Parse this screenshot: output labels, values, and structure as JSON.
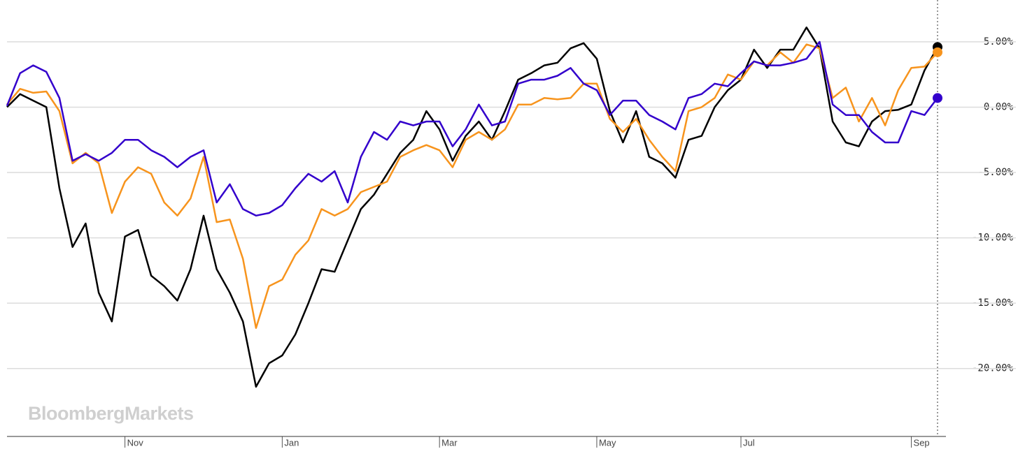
{
  "chart_data": {
    "type": "line",
    "watermark": "BloombergMarkets",
    "categories": [
      null,
      null,
      null,
      null,
      null,
      null,
      null,
      null,
      null,
      "Nov",
      null,
      null,
      null,
      null,
      null,
      null,
      null,
      null,
      null,
      null,
      null,
      "Jan",
      null,
      null,
      null,
      null,
      null,
      null,
      null,
      null,
      null,
      null,
      null,
      "Mar",
      null,
      null,
      null,
      null,
      null,
      null,
      null,
      null,
      null,
      null,
      null,
      "May",
      null,
      null,
      null,
      null,
      null,
      null,
      null,
      null,
      null,
      null,
      "Jul",
      null,
      null,
      null,
      null,
      null,
      null,
      null,
      null,
      null,
      null,
      null,
      null,
      "Sep",
      null,
      null
    ],
    "series": [
      {
        "color": "#000000",
        "values": [
          0,
          1.0,
          0.5,
          0,
          -6.2,
          -10.7,
          -8.9,
          -14.2,
          -16.4,
          -9.9,
          -9.4,
          -12.9,
          -13.7,
          -14.8,
          -12.4,
          -8.3,
          -12.4,
          -14.2,
          -16.4,
          -21.4,
          -19.6,
          -19.0,
          -17.4,
          -15.0,
          -12.4,
          -12.6,
          -10.2,
          -7.8,
          -6.7,
          -5.1,
          -3.5,
          -2.5,
          -0.3,
          -1.7,
          -4.1,
          -2.2,
          -1.1,
          -2.5,
          -0.3,
          2.1,
          2.6,
          3.2,
          3.4,
          4.5,
          4.9,
          3.7,
          -0.3,
          -2.7,
          -0.3,
          -3.8,
          -4.3,
          -5.4,
          -2.5,
          -2.2,
          0,
          1.3,
          2.1,
          4.4,
          3.0,
          4.4,
          4.4,
          6.1,
          4.5,
          -1.1,
          -2.7,
          -3.0,
          -1.1,
          -0.3,
          -0.2,
          0.2,
          2.8,
          4.6
        ]
      },
      {
        "color": "#f7941d",
        "values": [
          0.2,
          1.4,
          1.1,
          1.2,
          -0.3,
          -4.3,
          -3.5,
          -4.3,
          -8.1,
          -5.7,
          -4.6,
          -5.1,
          -7.3,
          -8.3,
          -7.0,
          -3.8,
          -8.8,
          -8.6,
          -11.6,
          -16.9,
          -13.7,
          -13.2,
          -11.3,
          -10.2,
          -7.8,
          -8.3,
          -7.8,
          -6.5,
          -6.1,
          -5.7,
          -3.8,
          -3.3,
          -2.9,
          -3.3,
          -4.6,
          -2.5,
          -1.9,
          -2.5,
          -1.7,
          0.2,
          0.2,
          0.7,
          0.6,
          0.7,
          1.8,
          1.8,
          -0.9,
          -1.9,
          -0.9,
          -2.5,
          -3.8,
          -4.9,
          -0.3,
          0,
          0.7,
          2.5,
          2.1,
          3.5,
          3.2,
          4.2,
          3.4,
          4.8,
          4.5,
          0.7,
          1.5,
          -1.1,
          0.7,
          -1.4,
          1.3,
          3.0,
          3.1,
          4.2
        ]
      },
      {
        "color": "#3300cc",
        "values": [
          0.1,
          2.6,
          3.2,
          2.7,
          0.7,
          -4.1,
          -3.6,
          -4.1,
          -3.5,
          -2.5,
          -2.5,
          -3.3,
          -3.8,
          -4.6,
          -3.8,
          -3.3,
          -7.3,
          -5.9,
          -7.8,
          -8.3,
          -8.1,
          -7.5,
          -6.2,
          -5.1,
          -5.7,
          -4.9,
          -7.3,
          -3.8,
          -1.9,
          -2.5,
          -1.1,
          -1.4,
          -1.1,
          -1.1,
          -3.0,
          -1.7,
          0.2,
          -1.4,
          -1.1,
          1.8,
          2.1,
          2.1,
          2.4,
          3.0,
          1.8,
          1.3,
          -0.6,
          0.5,
          0.5,
          -0.6,
          -1.1,
          -1.7,
          0.7,
          1.0,
          1.8,
          1.6,
          2.6,
          3.5,
          3.2,
          3.2,
          3.4,
          3.7,
          5.0,
          0.2,
          -0.6,
          -0.6,
          -1.9,
          -2.7,
          -2.7,
          -0.3,
          -0.6,
          0.7
        ]
      }
    ],
    "ylim": [
      -25.2,
      8.2
    ],
    "yticks": [
      {
        "value": 5,
        "label": "5.00%"
      },
      {
        "value": 0,
        "label": "0.00%"
      },
      {
        "value": -5,
        "label": "-5.00%"
      },
      {
        "value": -10,
        "label": "-10.00%"
      },
      {
        "value": -15,
        "label": "-15.00%"
      },
      {
        "value": -20,
        "label": "-20.00%"
      }
    ],
    "grid": true
  }
}
